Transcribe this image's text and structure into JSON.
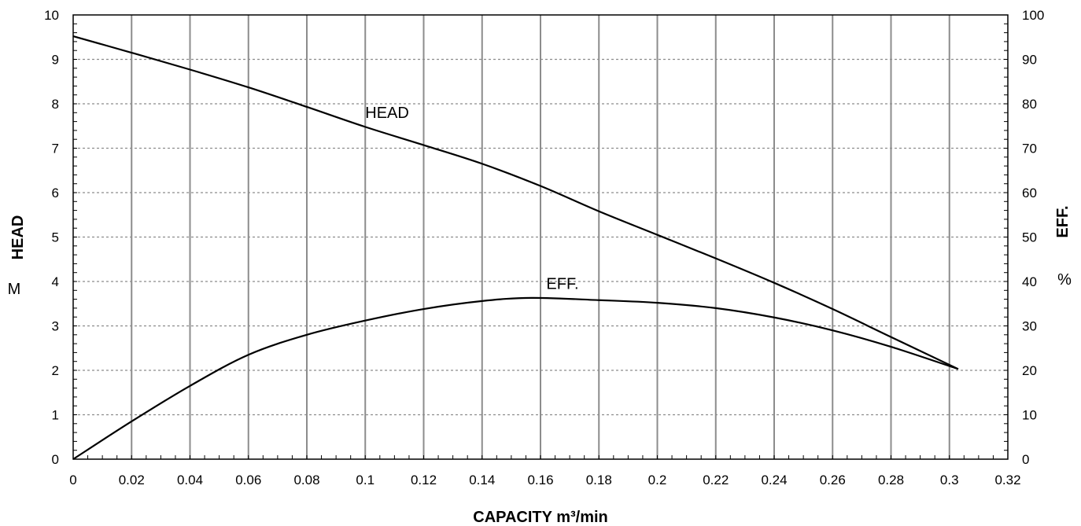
{
  "chart_data": {
    "type": "line",
    "xlabel": "CAPACITY m³/min",
    "ylabel_left": "HEAD",
    "ylabel_left_unit": "M",
    "ylabel_right": "EFF.",
    "ylabel_right_unit": "%",
    "xlim": [
      0,
      0.32
    ],
    "ylim_left": [
      0,
      10
    ],
    "ylim_right": [
      0,
      100
    ],
    "x_ticks": [
      "0",
      "0.02",
      "0.04",
      "0.06",
      "0.08",
      "0.1",
      "0.12",
      "0.14",
      "0.16",
      "0.18",
      "0.2",
      "0.22",
      "0.24",
      "0.26",
      "0.28",
      "0.3",
      "0.32"
    ],
    "y_left_ticks": [
      "0",
      "1",
      "2",
      "3",
      "4",
      "5",
      "6",
      "7",
      "8",
      "9",
      "10"
    ],
    "y_right_ticks": [
      "0",
      "10",
      "20",
      "30",
      "40",
      "50",
      "60",
      "70",
      "80",
      "90",
      "100"
    ],
    "grid": true,
    "series": [
      {
        "name": "HEAD",
        "axis": "left",
        "x": [
          0,
          0.02,
          0.04,
          0.06,
          0.08,
          0.1,
          0.12,
          0.14,
          0.16,
          0.18,
          0.2,
          0.22,
          0.24,
          0.26,
          0.28,
          0.303
        ],
        "y": [
          9.52,
          9.15,
          8.77,
          8.37,
          7.93,
          7.48,
          7.07,
          6.65,
          6.15,
          5.58,
          5.05,
          4.52,
          3.97,
          3.38,
          2.75,
          2.03
        ]
      },
      {
        "name": "EFF.",
        "axis": "right",
        "x": [
          0,
          0.02,
          0.04,
          0.06,
          0.08,
          0.1,
          0.12,
          0.14,
          0.157,
          0.18,
          0.2,
          0.22,
          0.24,
          0.26,
          0.28,
          0.303
        ],
        "y": [
          0,
          8.5,
          16.5,
          23.5,
          28.0,
          31.2,
          33.8,
          35.6,
          36.3,
          35.8,
          35.2,
          34.0,
          31.9,
          29.0,
          25.3,
          20.3
        ]
      }
    ],
    "annotations": [
      {
        "text": "HEAD",
        "x": 0.1,
        "y": 7.68,
        "axis": "left"
      },
      {
        "text": "EFF.",
        "x": 0.162,
        "y": 38.3,
        "axis": "right"
      }
    ]
  }
}
